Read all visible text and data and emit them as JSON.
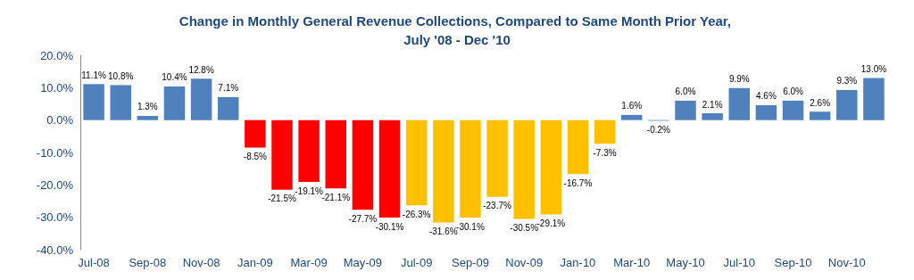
{
  "chart_data": {
    "type": "bar",
    "title": "Change in Monthly General Revenue Collections, Compared to Same Month Prior Year, July '08 - Dec '10",
    "categories": [
      "Jul-08",
      null,
      "Sep-08",
      null,
      "Nov-08",
      null,
      "Jan-09",
      null,
      "Mar-09",
      null,
      "May-09",
      null,
      "Jul-09",
      null,
      "Sep-09",
      null,
      "Nov-09",
      null,
      "Jan-10",
      null,
      "Mar-10",
      null,
      "May-10",
      null,
      "Jul-10",
      null,
      "Sep-10",
      null,
      "Nov-10",
      null
    ],
    "values": [
      11.1,
      10.8,
      1.3,
      10.4,
      12.8,
      7.1,
      -8.5,
      -21.5,
      -19.1,
      -21.1,
      -27.7,
      -30.1,
      -26.3,
      -31.6,
      -30.1,
      -23.7,
      -30.5,
      -29.1,
      -16.7,
      -7.3,
      1.6,
      -0.2,
      6.0,
      2.1,
      9.9,
      4.6,
      6.0,
      2.6,
      9.3,
      13.0
    ],
    "value_labels": [
      "11.1%",
      "10.8%",
      "1.3%",
      "10.4%",
      "12.8%",
      "7.1%",
      "-8.5%",
      "-21.5%",
      "-19.1%",
      "-21.1%",
      "-27.7%",
      "-30.1%",
      "-26.3%",
      "-31.6%",
      "-30.1%",
      "-23.7%",
      "-30.5%",
      "-29.1%",
      "-16.7%",
      "-7.3%",
      "1.6%",
      "-0.2%",
      "6.0%",
      "2.1%",
      "9.9%",
      "4.6%",
      "6.0%",
      "2.6%",
      "9.3%",
      "13.0%"
    ],
    "colors": [
      "#4f81bd",
      "#4f81bd",
      "#4f81bd",
      "#4f81bd",
      "#4f81bd",
      "#4f81bd",
      "#ff0000",
      "#ff0000",
      "#ff0000",
      "#ff0000",
      "#ff0000",
      "#ff0000",
      "#ffc000",
      "#ffc000",
      "#ffc000",
      "#ffc000",
      "#ffc000",
      "#ffc000",
      "#ffc000",
      "#ffc000",
      "#4f81bd",
      "#4f81bd",
      "#4f81bd",
      "#4f81bd",
      "#4f81bd",
      "#4f81bd",
      "#4f81bd",
      "#4f81bd",
      "#4f81bd",
      "#4f81bd"
    ],
    "ylim": [
      -40,
      20
    ],
    "yticks": [
      {
        "value": -40,
        "label": "-40.0%"
      },
      {
        "value": -30,
        "label": "-30.0%"
      },
      {
        "value": -20,
        "label": "-20.0%"
      },
      {
        "value": -10,
        "label": "-10.0%"
      },
      {
        "value": 0,
        "label": "0.0%"
      },
      {
        "value": 10,
        "label": "10.0%"
      },
      {
        "value": 20,
        "label": "20.0%"
      }
    ],
    "grid": false
  }
}
